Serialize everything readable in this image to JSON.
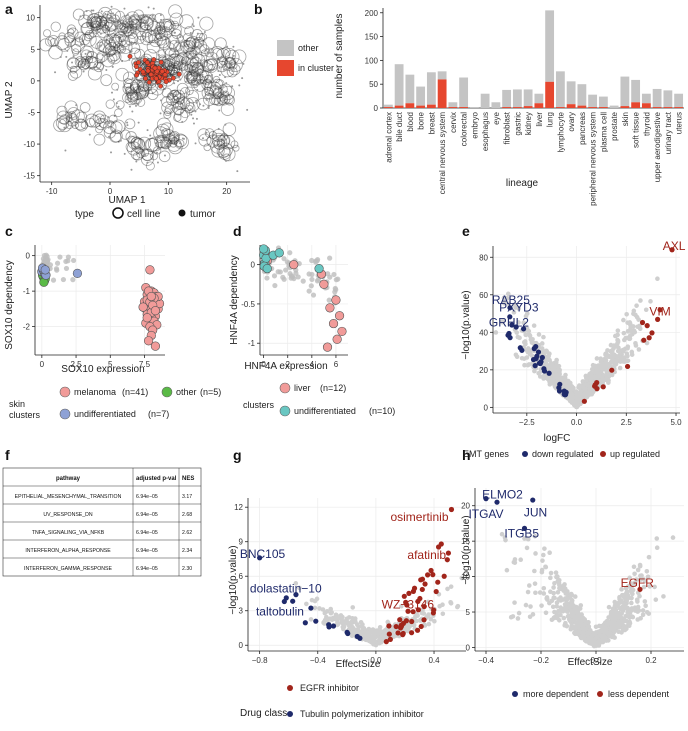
{
  "colors": {
    "red": "#e6472f",
    "dark_red": "#a1251b",
    "navy": "#1f2a6b",
    "grey": "#c4c4c4",
    "pink": "#f19b99",
    "green": "#5aba46",
    "blue": "#8ea1d5",
    "teal": "#69c7c2"
  },
  "panel_labels": {
    "a": "a",
    "b": "b",
    "c": "c",
    "d": "d",
    "e": "e",
    "f": "f",
    "g": "g",
    "h": "h"
  },
  "chart_data": [
    {
      "id": "a",
      "type": "scatter",
      "xlabel": "UMAP 1",
      "ylabel": "UMAP 2",
      "xlim": [
        -12,
        24
      ],
      "ylim": [
        -16,
        12
      ],
      "xticks": [
        -10,
        0,
        10,
        20
      ],
      "yticks": [
        -15,
        -10,
        -5,
        0,
        5,
        10
      ],
      "legend": {
        "title": "type",
        "items": [
          "cell line",
          "tumor"
        ]
      },
      "clusters": [
        {
          "x": 7.5,
          "y": 1.5,
          "n": 60,
          "highlight": true
        },
        {
          "x": -2,
          "y": 9,
          "n": 40
        },
        {
          "x": 4,
          "y": 9,
          "n": 40
        },
        {
          "x": 9,
          "y": 8,
          "n": 30
        },
        {
          "x": 14,
          "y": 6,
          "n": 30
        },
        {
          "x": 15,
          "y": 1,
          "n": 40
        },
        {
          "x": 18,
          "y": -2,
          "n": 30
        },
        {
          "x": 12,
          "y": -4,
          "n": 30
        },
        {
          "x": 4,
          "y": -2,
          "n": 30
        },
        {
          "x": -4,
          "y": 3,
          "n": 25
        },
        {
          "x": -6,
          "y": -6,
          "n": 20
        },
        {
          "x": 5,
          "y": -11,
          "n": 25
        },
        {
          "x": 10,
          "y": -9,
          "n": 25
        },
        {
          "x": 19,
          "y": -10,
          "n": 25
        },
        {
          "x": 20,
          "y": 3,
          "n": 25
        },
        {
          "x": 1,
          "y": 5,
          "n": 30
        },
        {
          "x": -8,
          "y": 6,
          "n": 20
        },
        {
          "x": 11,
          "y": 3,
          "n": 30
        },
        {
          "x": 0,
          "y": -7,
          "n": 20
        }
      ]
    },
    {
      "id": "b",
      "type": "bar",
      "xlabel": "lineage",
      "ylabel": "number of samples",
      "ylim": [
        0,
        210
      ],
      "yticks": [
        0,
        50,
        100,
        150,
        200
      ],
      "legend": [
        "other",
        "in cluster"
      ],
      "categories": [
        "adrenal cortex",
        "bile duct",
        "blood",
        "bone",
        "breast",
        "central nervous system",
        "cervix",
        "colorectal",
        "embryo",
        "esophagus",
        "eye",
        "fibroblast",
        "gastric",
        "kidney",
        "liver",
        "lung",
        "lymphocyte",
        "ovary",
        "pancreas",
        "peripheral nervous system",
        "plasma cell",
        "prostate",
        "skin",
        "soft tissue",
        "thyroid",
        "upper aerodigestive",
        "urinary tract",
        "uterus"
      ],
      "series": [
        {
          "name": "other",
          "values": [
            5,
            87,
            60,
            40,
            68,
            17,
            10,
            62,
            2,
            30,
            12,
            36,
            37,
            35,
            20,
            150,
            75,
            48,
            45,
            26,
            22,
            5,
            62,
            47,
            20,
            38,
            35,
            28
          ]
        },
        {
          "name": "in cluster",
          "values": [
            2,
            5,
            10,
            5,
            7,
            60,
            2,
            2,
            0,
            0,
            0,
            2,
            2,
            4,
            10,
            55,
            2,
            8,
            5,
            2,
            2,
            0,
            4,
            12,
            10,
            2,
            2,
            2
          ]
        }
      ]
    },
    {
      "id": "c",
      "type": "scatter",
      "xlabel": "SOX10 expression",
      "ylabel": "SOX10 dependency",
      "xlim": [
        -0.5,
        9
      ],
      "ylim": [
        -2.8,
        0.3
      ],
      "xticks": [
        0,
        2.5,
        5,
        7.5
      ],
      "yticks": [
        -2,
        -1,
        0
      ],
      "legend_title": "skin\nclusters",
      "groups": [
        {
          "name": "melanoma",
          "label": "melanoma",
          "count": "(n=41)",
          "points": [
            [
              7.9,
              -0.4
            ],
            [
              7.6,
              -0.9
            ],
            [
              8.0,
              -1.0
            ],
            [
              8.2,
              -1.05
            ],
            [
              7.7,
              -1.1
            ],
            [
              8.3,
              -1.15
            ],
            [
              7.9,
              -1.2
            ],
            [
              8.1,
              -1.25
            ],
            [
              7.5,
              -1.3
            ],
            [
              8.4,
              -1.3
            ],
            [
              7.8,
              -1.35
            ],
            [
              8.0,
              -1.4
            ],
            [
              8.2,
              -1.45
            ],
            [
              7.6,
              -1.5
            ],
            [
              8.5,
              -1.5
            ],
            [
              7.9,
              -1.55
            ],
            [
              8.1,
              -1.6
            ],
            [
              7.7,
              -1.65
            ],
            [
              8.3,
              -1.7
            ],
            [
              8.0,
              -1.75
            ],
            [
              7.8,
              -1.8
            ],
            [
              8.2,
              -1.85
            ],
            [
              7.6,
              -1.9
            ],
            [
              8.4,
              -1.95
            ],
            [
              7.9,
              -2.0
            ],
            [
              8.1,
              -2.1
            ],
            [
              8.0,
              -2.25
            ],
            [
              7.8,
              -2.4
            ],
            [
              8.3,
              -2.55
            ],
            [
              7.7,
              -1.25
            ],
            [
              8.6,
              -1.35
            ],
            [
              8.5,
              -1.15
            ],
            [
              7.4,
              -1.45
            ],
            [
              8.2,
              -1.2
            ],
            [
              7.8,
              -1.0
            ],
            [
              8.0,
              -1.6
            ],
            [
              7.9,
              -1.3
            ],
            [
              8.1,
              -1.4
            ],
            [
              8.3,
              -1.55
            ],
            [
              7.7,
              -1.75
            ],
            [
              8.0,
              -1.15
            ]
          ]
        },
        {
          "name": "other",
          "label": "other",
          "count": "(n=5)",
          "points": [
            [
              0.1,
              -0.6
            ],
            [
              0.2,
              -0.7
            ],
            [
              0.05,
              -0.55
            ],
            [
              0.25,
              -0.65
            ],
            [
              0.15,
              -0.75
            ]
          ]
        },
        {
          "name": "undifferentiated",
          "label": "undifferentiated",
          "count": "(n=7)",
          "points": [
            [
              0.0,
              -0.45
            ],
            [
              0.2,
              -0.5
            ],
            [
              0.1,
              -0.4
            ],
            [
              0.3,
              -0.55
            ],
            [
              2.6,
              -0.5
            ],
            [
              0.05,
              -0.35
            ],
            [
              0.25,
              -0.4
            ]
          ]
        }
      ]
    },
    {
      "id": "d",
      "type": "scatter",
      "xlabel": "HNF4A expression",
      "ylabel": "HNF4A dependency",
      "xlim": [
        -0.3,
        7
      ],
      "ylim": [
        -1.15,
        0.25
      ],
      "xticks": [
        0,
        2,
        4,
        6
      ],
      "yticks": [
        -1.0,
        -0.5,
        0.0
      ],
      "legend_title": "clusters",
      "groups": [
        {
          "name": "liver",
          "label": "liver",
          "count": "(n=12)",
          "points": [
            [
              0.1,
              0.15
            ],
            [
              0.3,
              0.05
            ],
            [
              2.5,
              0.0
            ],
            [
              4.8,
              -0.12
            ],
            [
              5.0,
              -0.25
            ],
            [
              5.5,
              -0.55
            ],
            [
              6.0,
              -0.45
            ],
            [
              6.3,
              -0.65
            ],
            [
              5.8,
              -0.75
            ],
            [
              6.5,
              -0.85
            ],
            [
              5.3,
              -1.05
            ],
            [
              6.1,
              -0.95
            ]
          ]
        },
        {
          "name": "undifferentiated",
          "label": "undifferentiated",
          "count": "(n=10)",
          "points": [
            [
              0.0,
              0.12
            ],
            [
              0.1,
              0.02
            ],
            [
              0.2,
              0.08
            ],
            [
              0.05,
              -0.02
            ],
            [
              0.15,
              0.18
            ],
            [
              0.8,
              0.12
            ],
            [
              1.3,
              0.15
            ],
            [
              0.3,
              -0.05
            ],
            [
              4.6,
              -0.05
            ],
            [
              0.0,
              0.2
            ]
          ]
        }
      ]
    },
    {
      "id": "e",
      "type": "scatter",
      "xlabel": "logFC",
      "ylabel": "−log10(p.value)",
      "xlim": [
        -4.2,
        5.2
      ],
      "ylim": [
        -3,
        86
      ],
      "xticks": [
        -2.5,
        0.0,
        2.5,
        5.0
      ],
      "xtick_labels": [
        "−2.5",
        "0.0",
        "2.5",
        "5.0"
      ],
      "yticks": [
        0,
        20,
        40,
        60,
        80
      ],
      "legend_title": "EMT genes",
      "legend": [
        "down regulated",
        "up regulated"
      ],
      "annotations": [
        {
          "text": "AXL",
          "color": "red",
          "x": 4.9,
          "y": 84
        },
        {
          "text": "VIM",
          "color": "red",
          "x": 4.2,
          "y": 49
        },
        {
          "text": "RAB25",
          "color": "navy",
          "x": -3.3,
          "y": 55
        },
        {
          "text": "PXYD3",
          "color": "navy",
          "x": -2.9,
          "y": 51
        },
        {
          "text": "GRHL2",
          "color": "navy",
          "x": -3.4,
          "y": 43
        }
      ]
    },
    {
      "id": "f",
      "type": "table",
      "columns": [
        "pathway",
        "adjusted p-val",
        "NES"
      ],
      "rows": [
        [
          "EPITHELIAL_MESENCHYMAL_TRANSITION",
          "6.94e−05",
          "3.17"
        ],
        [
          "UV_RESPONSE_DN",
          "6.94e−05",
          "2.68"
        ],
        [
          "TNFA_SIGNALING_VIA_NFKB",
          "6.94e−05",
          "2.62"
        ],
        [
          "INTERFERON_ALPHA_RESPONSE",
          "6.94e−05",
          "2.34"
        ],
        [
          "INTERFERON_GAMMA_RESPONSE",
          "6.94e−05",
          "2.30"
        ]
      ]
    },
    {
      "id": "g",
      "type": "scatter",
      "xlabel": "EffectSize",
      "ylabel": "−log10(p.value)",
      "xlim": [
        -0.88,
        0.62
      ],
      "ylim": [
        -0.5,
        12.8
      ],
      "xticks": [
        -0.8,
        -0.4,
        0.0,
        0.4
      ],
      "xtick_labels": [
        "−0.8",
        "−0.4",
        "0.0",
        "0.4"
      ],
      "yticks": [
        0,
        3,
        6,
        9,
        12
      ],
      "legend_title": "Drug class",
      "legend": [
        "EGFR inhibitor",
        "Tubulin polymerization inhibitor"
      ],
      "annotations": [
        {
          "text": "osimertinib",
          "color": "red",
          "x": 0.3,
          "y": 10.8
        },
        {
          "text": "afatinib",
          "color": "red",
          "x": 0.35,
          "y": 7.5
        },
        {
          "text": "WZ−3146",
          "color": "red",
          "x": 0.22,
          "y": 3.2
        },
        {
          "text": "BNC105",
          "color": "navy",
          "x": -0.78,
          "y": 7.6
        },
        {
          "text": "dolastatin−10",
          "color": "navy",
          "x": -0.62,
          "y": 4.6
        },
        {
          "text": "taltobulin",
          "color": "navy",
          "x": -0.66,
          "y": 2.6
        }
      ]
    },
    {
      "id": "h",
      "type": "scatter",
      "xlabel": "EffectSize",
      "ylabel": "−log10(p.value)",
      "xlim": [
        -0.44,
        0.32
      ],
      "ylim": [
        -0.5,
        22.5
      ],
      "xticks": [
        -0.4,
        -0.2,
        0.0,
        0.2
      ],
      "xtick_labels": [
        "−0.4",
        "−0.2",
        "0.0",
        "0.2"
      ],
      "yticks": [
        0,
        5,
        10,
        15,
        20
      ],
      "legend": [
        "more dependent",
        "less dependent"
      ],
      "annotations": [
        {
          "text": "ELMO2",
          "color": "navy",
          "x": -0.34,
          "y": 21
        },
        {
          "text": "JUN",
          "color": "navy",
          "x": -0.22,
          "y": 18.5
        },
        {
          "text": "ITGAV",
          "color": "navy",
          "x": -0.4,
          "y": 18.3
        },
        {
          "text": "ITGB5",
          "color": "navy",
          "x": -0.27,
          "y": 15.5
        },
        {
          "text": "EGFR",
          "color": "red",
          "x": 0.15,
          "y": 8.5
        }
      ]
    }
  ]
}
